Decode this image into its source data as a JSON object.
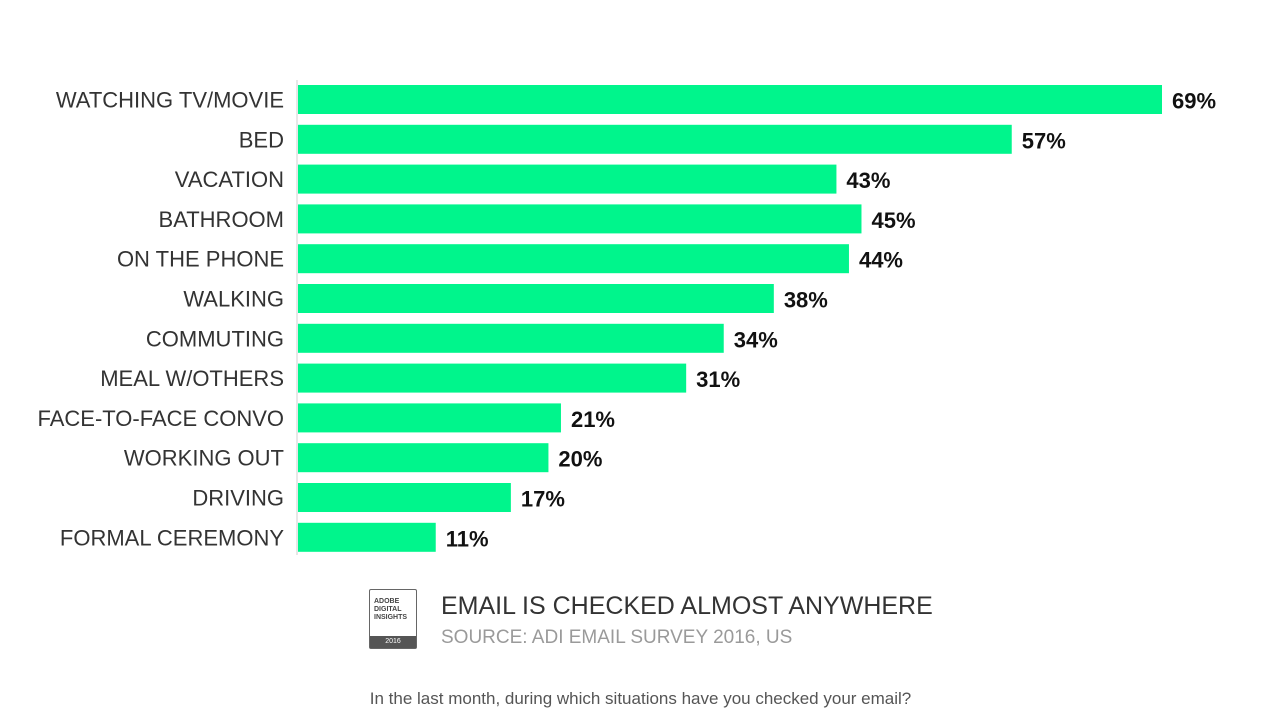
{
  "chart_data": {
    "type": "bar",
    "orientation": "horizontal",
    "categories": [
      "WATCHING TV/MOVIE",
      "BED",
      "VACATION",
      "BATHROOM",
      "ON THE PHONE",
      "WALKING",
      "COMMUTING",
      "MEAL W/OTHERS",
      "FACE-TO-FACE CONVO",
      "WORKING OUT",
      "DRIVING",
      "FORMAL CEREMONY"
    ],
    "values": [
      69,
      57,
      43,
      45,
      44,
      38,
      34,
      31,
      21,
      20,
      17,
      11
    ],
    "value_labels": [
      "69%",
      "57%",
      "43%",
      "45%",
      "44%",
      "38%",
      "34%",
      "31%",
      "21%",
      "20%",
      "17%",
      "11%"
    ],
    "unit": "%",
    "xlim": [
      0,
      69
    ],
    "grid": false,
    "legend": "none",
    "bar_color": "#00f58c"
  },
  "caption": {
    "title": "EMAIL IS CHECKED ALMOST ANYWHERE",
    "source": "SOURCE: ADI EMAIL SURVEY 2016, US",
    "question": "In the last month, during which situations have you checked your email?"
  },
  "logo": {
    "text": "ADOBE\nDIGITAL\nINSIGHTS",
    "year": "2016"
  }
}
